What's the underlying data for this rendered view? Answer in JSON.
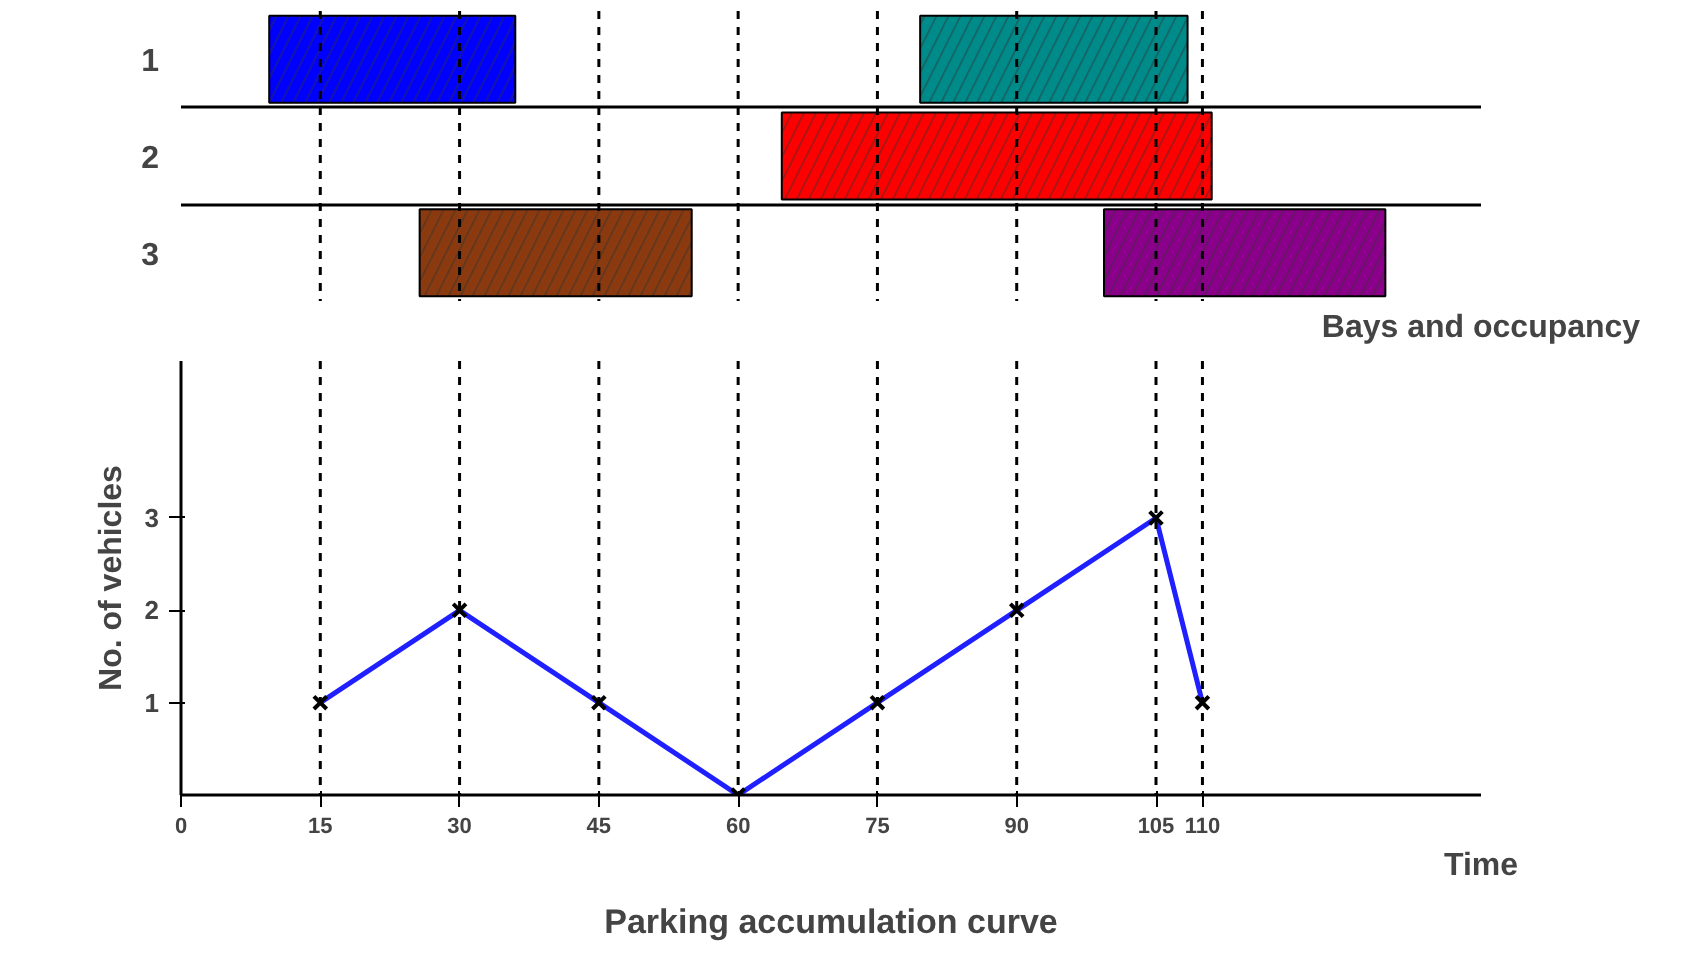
{
  "chart_data": [
    {
      "type": "bar",
      "orientation": "horizontal",
      "xlabel": "Bays and occupancy",
      "categories": [
        "1",
        "2",
        "3"
      ],
      "xlim": [
        0,
        140
      ],
      "tick_labels": "y",
      "grid": "y",
      "series": [
        {
          "values": [
            26.5,
            46.3,
            29.3
          ],
          "base": [
            9.5,
            64.7,
            25.7
          ],
          "colors": [
            "#0000ff",
            "#ff0000",
            "#8b3a0f"
          ]
        },
        {
          "values": [
            28.8,
            null,
            30.3
          ],
          "base": [
            79.6,
            null,
            99.4
          ],
          "colors": [
            "#008b8b",
            null,
            "#8b008b"
          ]
        }
      ],
      "ref_lines": [
        {
          "axis": "x",
          "value": 15
        },
        {
          "axis": "x",
          "value": 30
        },
        {
          "axis": "x",
          "value": 45
        },
        {
          "axis": "x",
          "value": 60
        },
        {
          "axis": "x",
          "value": 75
        },
        {
          "axis": "x",
          "value": 90
        },
        {
          "axis": "x",
          "value": 105
        },
        {
          "axis": "x",
          "value": 110
        }
      ]
    },
    {
      "type": "line",
      "title": "Parking accumulation curve",
      "xlabel": "Time",
      "ylabel": "No. of vehicles",
      "x": [
        15,
        30,
        45,
        60,
        75,
        90,
        105,
        110
      ],
      "series": [
        {
          "color": "#1f1fff",
          "values": [
            1,
            2,
            1,
            0,
            1,
            2,
            3,
            1
          ]
        }
      ],
      "xlim": [
        0,
        140
      ],
      "xticks": [
        0,
        15,
        30,
        45,
        60,
        75,
        90,
        105,
        110
      ],
      "ylim": [
        0,
        4.7
      ],
      "yticks": [
        1,
        2,
        3
      ],
      "marker": "cross",
      "grid": false,
      "ref_lines": [
        {
          "axis": "x",
          "value": 15
        },
        {
          "axis": "x",
          "value": 30
        },
        {
          "axis": "x",
          "value": 45
        },
        {
          "axis": "x",
          "value": 60
        },
        {
          "axis": "x",
          "value": 75
        },
        {
          "axis": "x",
          "value": 90
        },
        {
          "axis": "x",
          "value": 105
        },
        {
          "axis": "x",
          "value": 110
        }
      ]
    }
  ]
}
